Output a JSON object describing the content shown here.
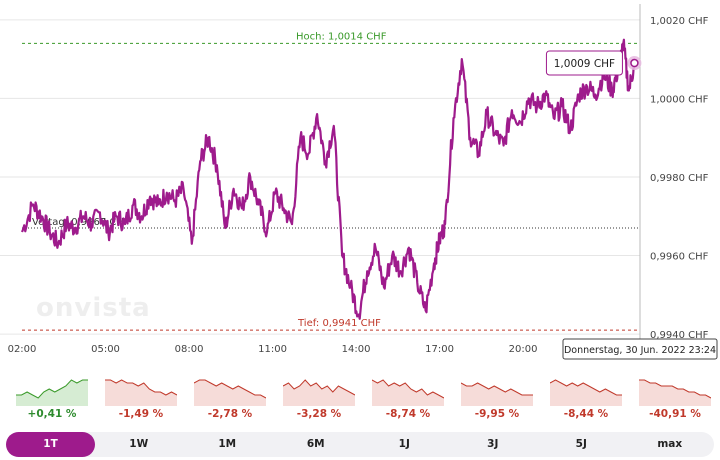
{
  "chart_data": {
    "type": "line",
    "currency": "CHF",
    "y_ticks": [
      "1,0020 CHF",
      "1,0000 CHF",
      "0,9980 CHF",
      "0,9960 CHF",
      "0,9940 CHF"
    ],
    "y_tick_values": [
      1.002,
      1.0,
      0.998,
      0.996,
      0.994
    ],
    "ylim": [
      0.99385,
      1.00225
    ],
    "x_ticks": [
      "02:00",
      "05:00",
      "08:00",
      "11:00",
      "14:00",
      "17:00",
      "20:00"
    ],
    "x_tick_hours": [
      2,
      5,
      8,
      11,
      14,
      17,
      20
    ],
    "xlim_hours": [
      2,
      24.2
    ],
    "series": [
      {
        "color": "#9e1b8c",
        "x_hours": [
          2.0,
          2.4,
          2.7,
          3.0,
          3.3,
          3.6,
          3.9,
          4.2,
          4.5,
          4.8,
          5.1,
          5.4,
          5.7,
          6.0,
          6.3,
          6.6,
          6.9,
          7.2,
          7.5,
          7.8,
          8.1,
          8.4,
          8.7,
          9.0,
          9.3,
          9.6,
          9.9,
          10.2,
          10.5,
          10.8,
          11.1,
          11.4,
          11.7,
          12.0,
          12.3,
          12.6,
          12.9,
          13.2,
          13.5,
          13.8,
          14.1,
          14.4,
          14.7,
          15.0,
          15.3,
          15.6,
          15.9,
          16.2,
          16.5,
          16.8,
          17.0,
          17.2,
          17.5,
          17.8,
          18.1,
          18.4,
          18.7,
          19.0,
          19.3,
          19.6,
          19.9,
          20.2,
          20.5,
          20.8,
          21.1,
          21.4,
          21.7,
          22.0,
          22.3,
          22.6,
          22.9,
          23.2,
          23.4,
          23.6,
          23.8,
          24.0
        ],
        "values": [
          0.9966,
          0.9973,
          0.997,
          0.9966,
          0.9963,
          0.9968,
          0.9967,
          0.997,
          0.9968,
          0.9971,
          0.9966,
          0.997,
          0.9968,
          0.9973,
          0.997,
          0.9975,
          0.9973,
          0.9976,
          0.9974,
          0.9977,
          0.9963,
          0.9984,
          0.999,
          0.9983,
          0.9967,
          0.9977,
          0.9972,
          0.998,
          0.9973,
          0.9966,
          0.9976,
          0.9972,
          0.9968,
          0.999,
          0.9986,
          0.9996,
          0.9984,
          0.9993,
          0.996,
          0.9952,
          0.9945,
          0.9956,
          0.9962,
          0.9952,
          0.996,
          0.9956,
          0.9962,
          0.9953,
          0.9946,
          0.9958,
          0.9964,
          0.9968,
          0.9995,
          1.001,
          0.999,
          0.9986,
          0.9996,
          0.9991,
          0.9988,
          0.9997,
          0.9994,
          1.0,
          0.9998,
          1.0001,
          0.9995,
          0.9998,
          0.9992,
          1.0001,
          1.0003,
          1.0001,
          1.0006,
          1.0002,
          1.0007,
          1.0014,
          1.0002,
          1.0009
        ]
      }
    ],
    "high": {
      "label": "Hoch: 1,0014 CHF",
      "value": 1.0014
    },
    "low": {
      "label": "Tief: 0,9941 CHF",
      "value": 0.9941
    },
    "previous_close": {
      "label": "Vortag: 0,9967 CHF",
      "value": 0.9967
    },
    "tooltip": {
      "label": "1,0009 CHF",
      "x_hours": 24.0,
      "value": 1.0009
    },
    "hover_date": "Donnerstag, 30 Jun. 2022 23:24",
    "grid": true,
    "watermark": "onvista",
    "colors": {
      "line": "#9e1b8c",
      "high": "#3a9a2a",
      "low": "#c0392b",
      "positive": "#2e8b2e",
      "negative": "#c0392b"
    }
  },
  "performance": [
    {
      "range": "1T",
      "change": "+0,41 %",
      "direction": "up",
      "spark": [
        3,
        3,
        4,
        3,
        2,
        4,
        5,
        4,
        5,
        6,
        8,
        7,
        8,
        8
      ]
    },
    {
      "range": "1W",
      "change": "-1,49 %",
      "direction": "down",
      "spark": [
        8,
        8,
        7,
        8,
        7,
        7,
        6,
        7,
        5,
        4,
        4,
        3,
        4,
        3
      ]
    },
    {
      "range": "1M",
      "change": "-2,78 %",
      "direction": "down",
      "spark": [
        7,
        8,
        8,
        7,
        6,
        7,
        6,
        5,
        6,
        5,
        4,
        3,
        3,
        2
      ]
    },
    {
      "range": "6M",
      "change": "-3,28 %",
      "direction": "down",
      "spark": [
        6,
        7,
        5,
        6,
        8,
        6,
        7,
        5,
        6,
        4,
        6,
        5,
        4,
        3
      ]
    },
    {
      "range": "1J",
      "change": "-8,74 %",
      "direction": "down",
      "spark": [
        8,
        7,
        8,
        6,
        7,
        6,
        7,
        5,
        4,
        5,
        3,
        4,
        3,
        2
      ]
    },
    {
      "range": "3J",
      "change": "-9,95 %",
      "direction": "down",
      "spark": [
        7,
        6,
        6,
        7,
        6,
        5,
        6,
        5,
        4,
        5,
        4,
        3,
        3,
        3
      ]
    },
    {
      "range": "5J",
      "change": "-8,44 %",
      "direction": "down",
      "spark": [
        7,
        8,
        7,
        6,
        7,
        6,
        7,
        6,
        5,
        4,
        5,
        4,
        3,
        3
      ]
    },
    {
      "range": "max",
      "change": "-40,91 %",
      "direction": "down",
      "spark": [
        8,
        8,
        7,
        7,
        6,
        6,
        6,
        5,
        5,
        4,
        4,
        3,
        3,
        2
      ]
    }
  ],
  "range_tabs": [
    {
      "label": "1T",
      "active": true
    },
    {
      "label": "1W",
      "active": false
    },
    {
      "label": "1M",
      "active": false
    },
    {
      "label": "6M",
      "active": false
    },
    {
      "label": "1J",
      "active": false
    },
    {
      "label": "3J",
      "active": false
    },
    {
      "label": "5J",
      "active": false
    },
    {
      "label": "max",
      "active": false
    }
  ]
}
